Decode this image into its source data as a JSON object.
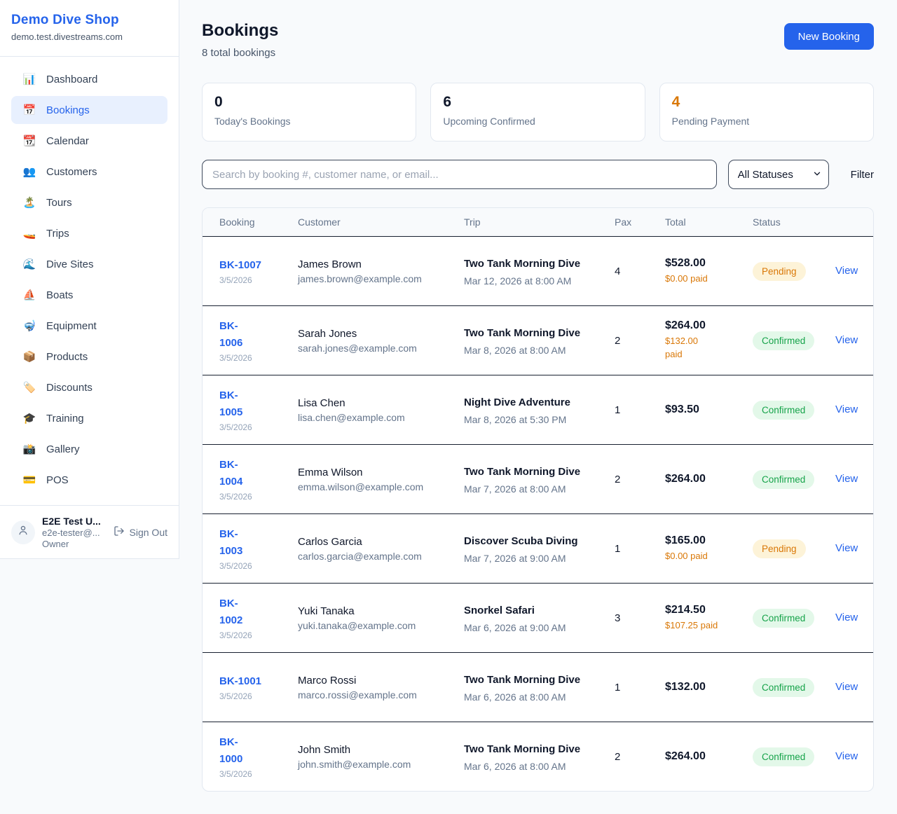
{
  "sidebar": {
    "title": "Demo Dive Shop",
    "domain": "demo.test.divestreams.com",
    "items": [
      {
        "label": "Dashboard",
        "icon": "bar-chart-icon",
        "glyph": "📊",
        "active": false
      },
      {
        "label": "Bookings",
        "icon": "calendar-date-icon",
        "glyph": "📅",
        "active": true
      },
      {
        "label": "Calendar",
        "icon": "tear-off-calendar-icon",
        "glyph": "📆",
        "active": false
      },
      {
        "label": "Customers",
        "icon": "people-icon",
        "glyph": "👥",
        "active": false
      },
      {
        "label": "Tours",
        "icon": "island-icon",
        "glyph": "🏝️",
        "active": false
      },
      {
        "label": "Trips",
        "icon": "speedboat-icon",
        "glyph": "🚤",
        "active": false
      },
      {
        "label": "Dive Sites",
        "icon": "wave-icon",
        "glyph": "🌊",
        "active": false
      },
      {
        "label": "Boats",
        "icon": "sailboat-icon",
        "glyph": "⛵",
        "active": false
      },
      {
        "label": "Equipment",
        "icon": "diving-mask-icon",
        "glyph": "🤿",
        "active": false
      },
      {
        "label": "Products",
        "icon": "package-icon",
        "glyph": "📦",
        "active": false
      },
      {
        "label": "Discounts",
        "icon": "label-tag-icon",
        "glyph": "🏷️",
        "active": false
      },
      {
        "label": "Training",
        "icon": "graduation-cap-icon",
        "glyph": "🎓",
        "active": false
      },
      {
        "label": "Gallery",
        "icon": "camera-flash-icon",
        "glyph": "📸",
        "active": false
      },
      {
        "label": "POS",
        "icon": "credit-card-icon",
        "glyph": "💳",
        "active": false
      }
    ],
    "user": {
      "name": "E2E Test U...",
      "email": "e2e-tester@...",
      "role": "Owner",
      "signout_label": "Sign Out"
    }
  },
  "header": {
    "title": "Bookings",
    "subtitle": "8 total bookings",
    "new_booking_label": "New Booking"
  },
  "stats": [
    {
      "value": "0",
      "label": "Today's Bookings",
      "color": "#0f172a"
    },
    {
      "value": "6",
      "label": "Upcoming Confirmed",
      "color": "#0f172a"
    },
    {
      "value": "4",
      "label": "Pending Payment",
      "color": "#d97706"
    }
  ],
  "controls": {
    "search_placeholder": "Search by booking #, customer name, or email...",
    "status_filter_value": "All Statuses",
    "filter_label": "Filter"
  },
  "table": {
    "columns": [
      "Booking",
      "Customer",
      "Trip",
      "Pax",
      "Total",
      "Status"
    ],
    "view_label": "View",
    "rows": [
      {
        "id": "BK-1007",
        "id_lines": [
          "BK-1007"
        ],
        "date": "3/5/2026",
        "customer": "James Brown",
        "email": "james.brown@example.com",
        "trip": "Two Tank Morning Dive",
        "trip_date": "Mar 12, 2026 at 8:00 AM",
        "pax": "4",
        "total": "$528.00",
        "paid_lines": [
          "$0.00 paid"
        ],
        "status": "Pending"
      },
      {
        "id": "BK-1006",
        "id_lines": [
          "BK-",
          "1006"
        ],
        "date": "3/5/2026",
        "customer": "Sarah Jones",
        "email": "sarah.jones@example.com",
        "trip": "Two Tank Morning Dive",
        "trip_date": "Mar 8, 2026 at 8:00 AM",
        "pax": "2",
        "total": "$264.00",
        "paid_lines": [
          "$132.00",
          "paid"
        ],
        "status": "Confirmed"
      },
      {
        "id": "BK-1005",
        "id_lines": [
          "BK-",
          "1005"
        ],
        "date": "3/5/2026",
        "customer": "Lisa Chen",
        "email": "lisa.chen@example.com",
        "trip": "Night Dive Adventure",
        "trip_date": "Mar 8, 2026 at 5:30 PM",
        "pax": "1",
        "total": "$93.50",
        "paid_lines": [],
        "status": "Confirmed"
      },
      {
        "id": "BK-1004",
        "id_lines": [
          "BK-",
          "1004"
        ],
        "date": "3/5/2026",
        "customer": "Emma Wilson",
        "email": "emma.wilson@example.com",
        "trip": "Two Tank Morning Dive",
        "trip_date": "Mar 7, 2026 at 8:00 AM",
        "pax": "2",
        "total": "$264.00",
        "paid_lines": [],
        "status": "Confirmed"
      },
      {
        "id": "BK-1003",
        "id_lines": [
          "BK-",
          "1003"
        ],
        "date": "3/5/2026",
        "customer": "Carlos Garcia",
        "email": "carlos.garcia@example.com",
        "trip": "Discover Scuba Diving",
        "trip_date": "Mar 7, 2026 at 9:00 AM",
        "pax": "1",
        "total": "$165.00",
        "paid_lines": [
          "$0.00 paid"
        ],
        "status": "Pending"
      },
      {
        "id": "BK-1002",
        "id_lines": [
          "BK-",
          "1002"
        ],
        "date": "3/5/2026",
        "customer": "Yuki Tanaka",
        "email": "yuki.tanaka@example.com",
        "trip": "Snorkel Safari",
        "trip_date": "Mar 6, 2026 at 9:00 AM",
        "pax": "3",
        "total": "$214.50",
        "paid_lines": [
          "$107.25 paid"
        ],
        "status": "Confirmed"
      },
      {
        "id": "BK-1001",
        "id_lines": [
          "BK-1001"
        ],
        "date": "3/5/2026",
        "customer": "Marco Rossi",
        "email": "marco.rossi@example.com",
        "trip": "Two Tank Morning Dive",
        "trip_date": "Mar 6, 2026 at 8:00 AM",
        "pax": "1",
        "total": "$132.00",
        "paid_lines": [],
        "status": "Confirmed"
      },
      {
        "id": "BK-1000",
        "id_lines": [
          "BK-",
          "1000"
        ],
        "date": "3/5/2026",
        "customer": "John Smith",
        "email": "john.smith@example.com",
        "trip": "Two Tank Morning Dive",
        "trip_date": "Mar 6, 2026 at 8:00 AM",
        "pax": "2",
        "total": "$264.00",
        "paid_lines": [],
        "status": "Confirmed"
      }
    ]
  },
  "colors": {
    "accent": "#2563eb",
    "pending_text": "#d97706",
    "pending_bg": "#fdf3d8",
    "confirmed_text": "#16a34a",
    "confirmed_bg": "#e3f8e9",
    "paid_orange": "#d97706",
    "page_bg": "#f8fafc"
  }
}
